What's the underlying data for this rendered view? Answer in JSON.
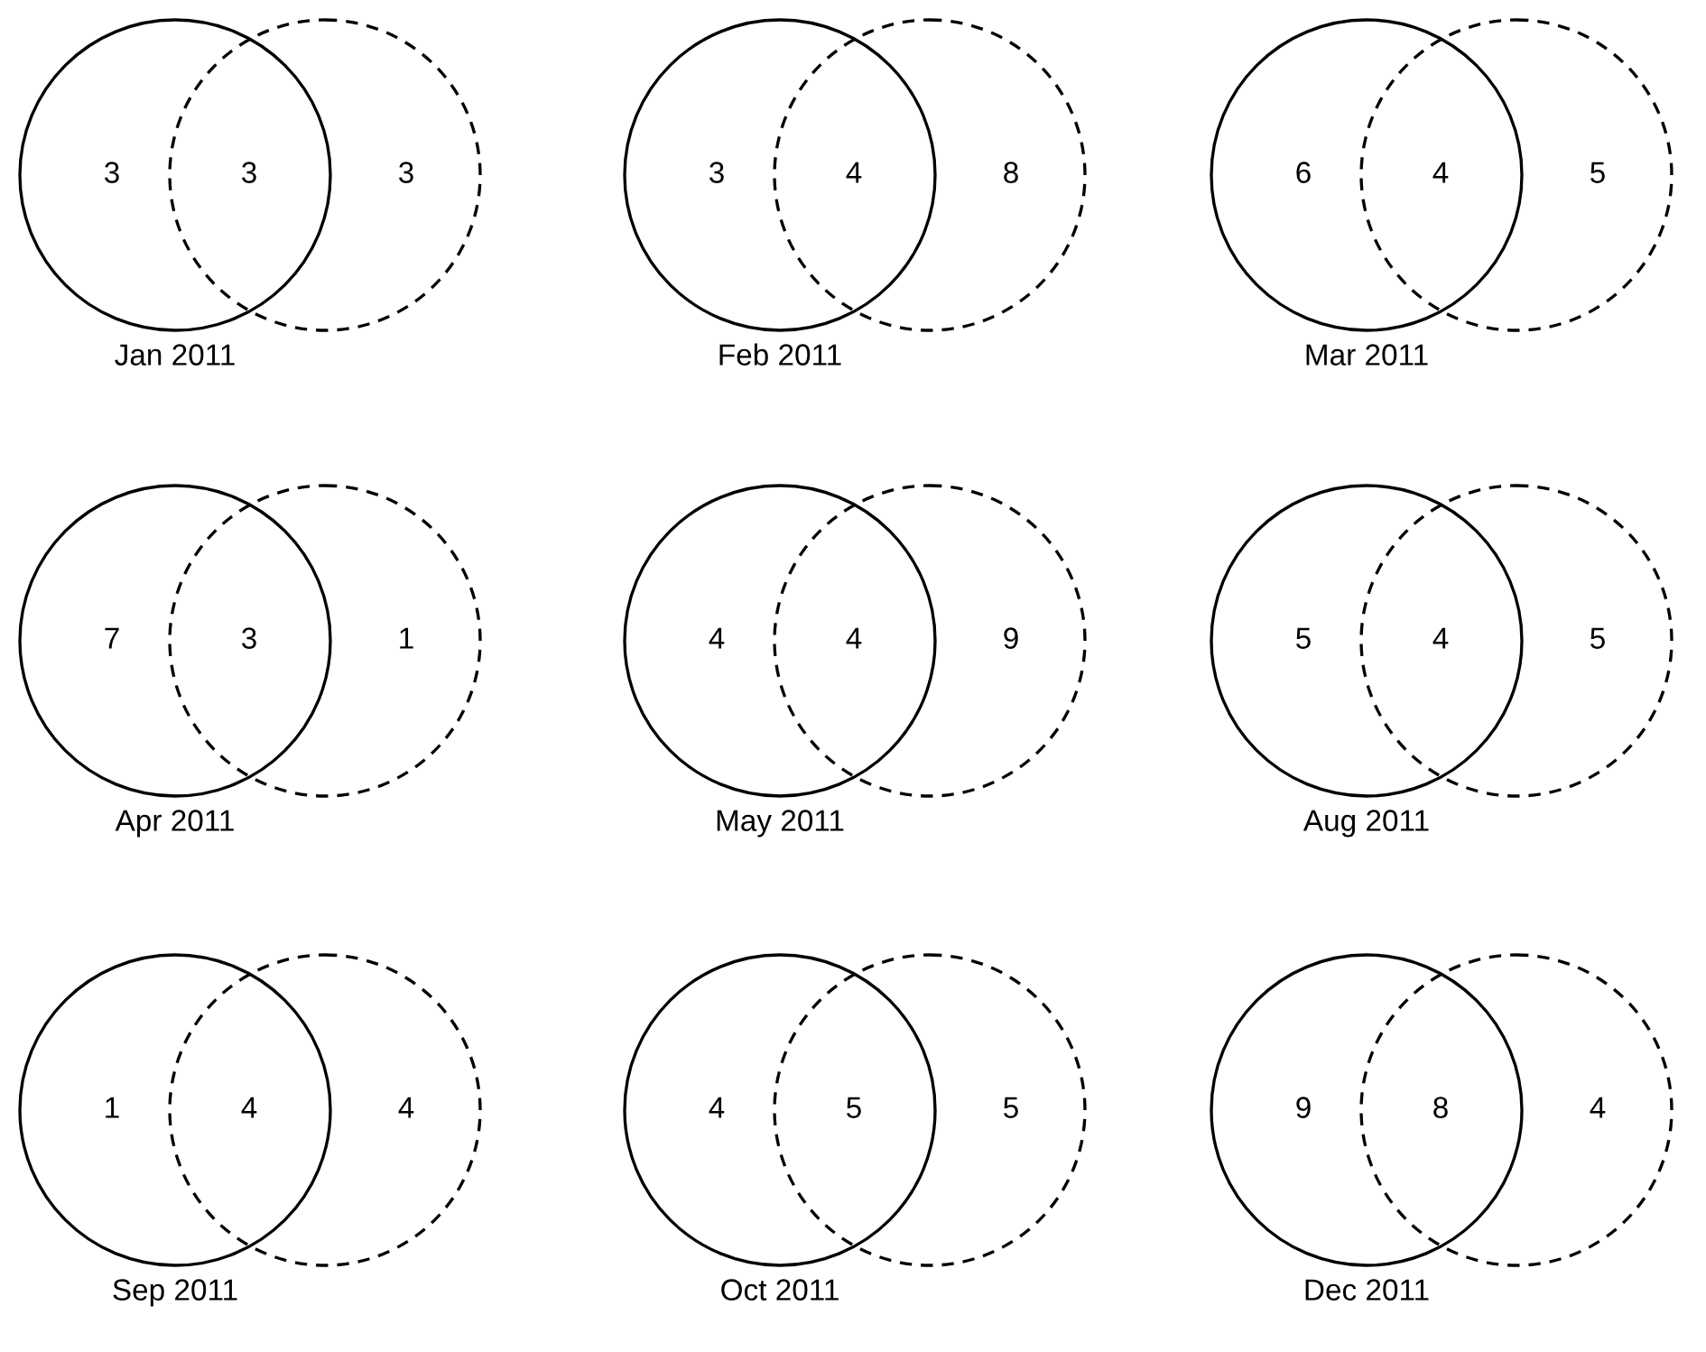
{
  "chart_data": [
    {
      "type": "other",
      "xlabel": "Jan 2011",
      "data_labels": true,
      "values": [
        3,
        3,
        3
      ]
    },
    {
      "type": "other",
      "xlabel": "Feb 2011",
      "data_labels": true,
      "values": [
        3,
        4,
        8
      ]
    },
    {
      "type": "other",
      "xlabel": "Mar 2011",
      "data_labels": true,
      "values": [
        6,
        4,
        5
      ]
    },
    {
      "type": "other",
      "xlabel": "Apr 2011",
      "data_labels": true,
      "values": [
        7,
        3,
        1
      ]
    },
    {
      "type": "other",
      "xlabel": "May 2011",
      "data_labels": true,
      "values": [
        4,
        4,
        9
      ]
    },
    {
      "type": "other",
      "xlabel": "Aug 2011",
      "data_labels": true,
      "values": [
        5,
        4,
        5
      ]
    },
    {
      "type": "other",
      "xlabel": "Sep 2011",
      "data_labels": true,
      "values": [
        1,
        4,
        4
      ]
    },
    {
      "type": "other",
      "xlabel": "Oct 2011",
      "data_labels": true,
      "values": [
        4,
        5,
        5
      ]
    },
    {
      "type": "other",
      "xlabel": "Dec 2011",
      "data_labels": true,
      "values": [
        9,
        8,
        4
      ]
    }
  ]
}
